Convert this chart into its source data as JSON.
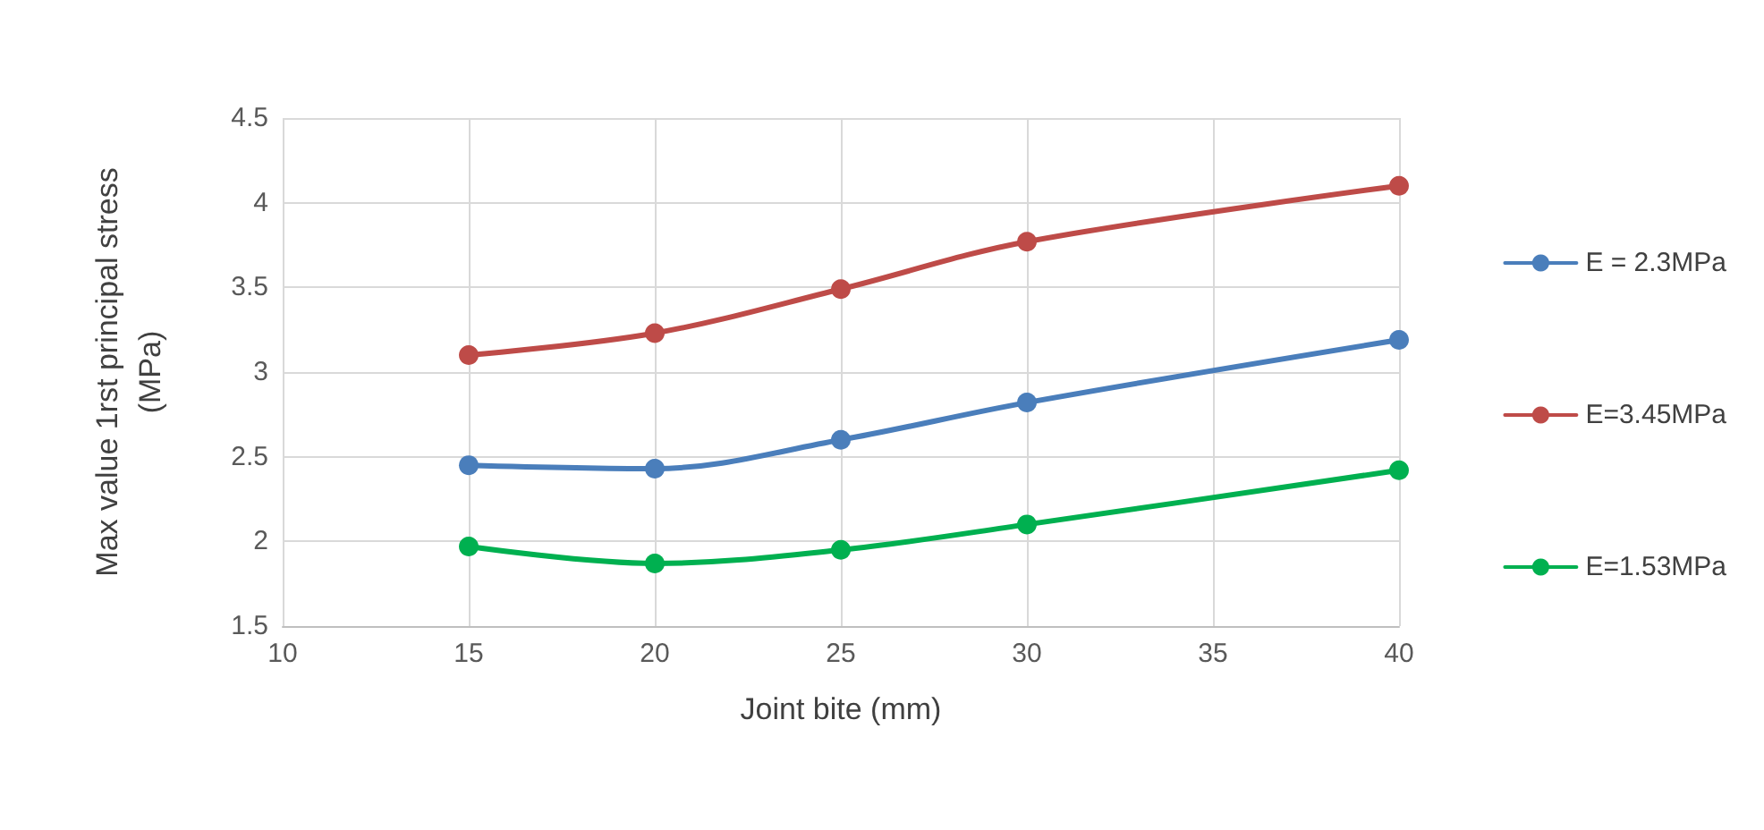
{
  "chart_data": {
    "type": "line",
    "xlabel": "Joint bite (mm)",
    "ylabel": "Max value 1rst principal stress\n(MPa)",
    "x": [
      15,
      20,
      25,
      30,
      40
    ],
    "series": [
      {
        "name": "E = 2.3MPa",
        "color": "#4a7ebb",
        "values": [
          2.45,
          2.43,
          2.6,
          2.82,
          3.19
        ]
      },
      {
        "name": "E=3.45MPa",
        "color": "#be4b48",
        "values": [
          3.1,
          3.23,
          3.49,
          3.77,
          4.1
        ]
      },
      {
        "name": "E=1.53MPa",
        "color": "#00b050",
        "values": [
          1.97,
          1.87,
          1.95,
          2.1,
          2.42
        ]
      }
    ],
    "xlim": [
      10,
      40
    ],
    "xticks": [
      10,
      15,
      20,
      25,
      30,
      35,
      40
    ],
    "ylim": [
      1.5,
      4.5
    ],
    "yticks": [
      1.5,
      2,
      2.5,
      3,
      3.5,
      4,
      4.5
    ],
    "grid": true,
    "legend": "right",
    "marker": "circle",
    "line_style": "solid"
  }
}
